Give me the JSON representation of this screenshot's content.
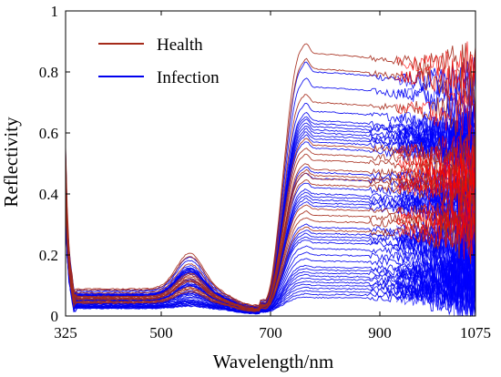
{
  "chart_data": {
    "type": "line",
    "xlabel": "Wavelength/nm",
    "ylabel": "Reflectivity",
    "xlim": [
      325,
      1075
    ],
    "ylim": [
      0,
      1
    ],
    "xticks": [
      325,
      500,
      700,
      900,
      1075
    ],
    "yticks": [
      0,
      0.2,
      0.4,
      0.6,
      0.8,
      1
    ],
    "ytick_labels": [
      "0",
      "0.2",
      "0.4",
      "0.6",
      "0.8",
      "1"
    ],
    "grid": false,
    "legend_position": "top-left",
    "series": [
      {
        "name": "Health",
        "color": "#a52a1a",
        "noise_color": "#ff0000",
        "nir_plateaus": [
          0.86,
          0.81,
          0.7,
          0.56,
          0.53,
          0.51,
          0.48,
          0.46,
          0.45,
          0.43,
          0.35,
          0.33,
          0.31,
          0.28
        ]
      },
      {
        "name": "Infection",
        "color": "#0000ee",
        "noise_color": "#0000ff",
        "nir_plateaus": [
          0.8,
          0.75,
          0.67,
          0.64,
          0.63,
          0.62,
          0.61,
          0.6,
          0.59,
          0.58,
          0.57,
          0.55,
          0.47,
          0.45,
          0.42,
          0.4,
          0.39,
          0.38,
          0.37,
          0.36,
          0.29,
          0.27,
          0.26,
          0.25,
          0.24,
          0.22,
          0.2,
          0.18,
          0.16,
          0.15,
          0.14,
          0.13,
          0.12,
          0.11,
          0.1,
          0.09,
          0.08,
          0.07,
          0.06
        ]
      }
    ]
  }
}
